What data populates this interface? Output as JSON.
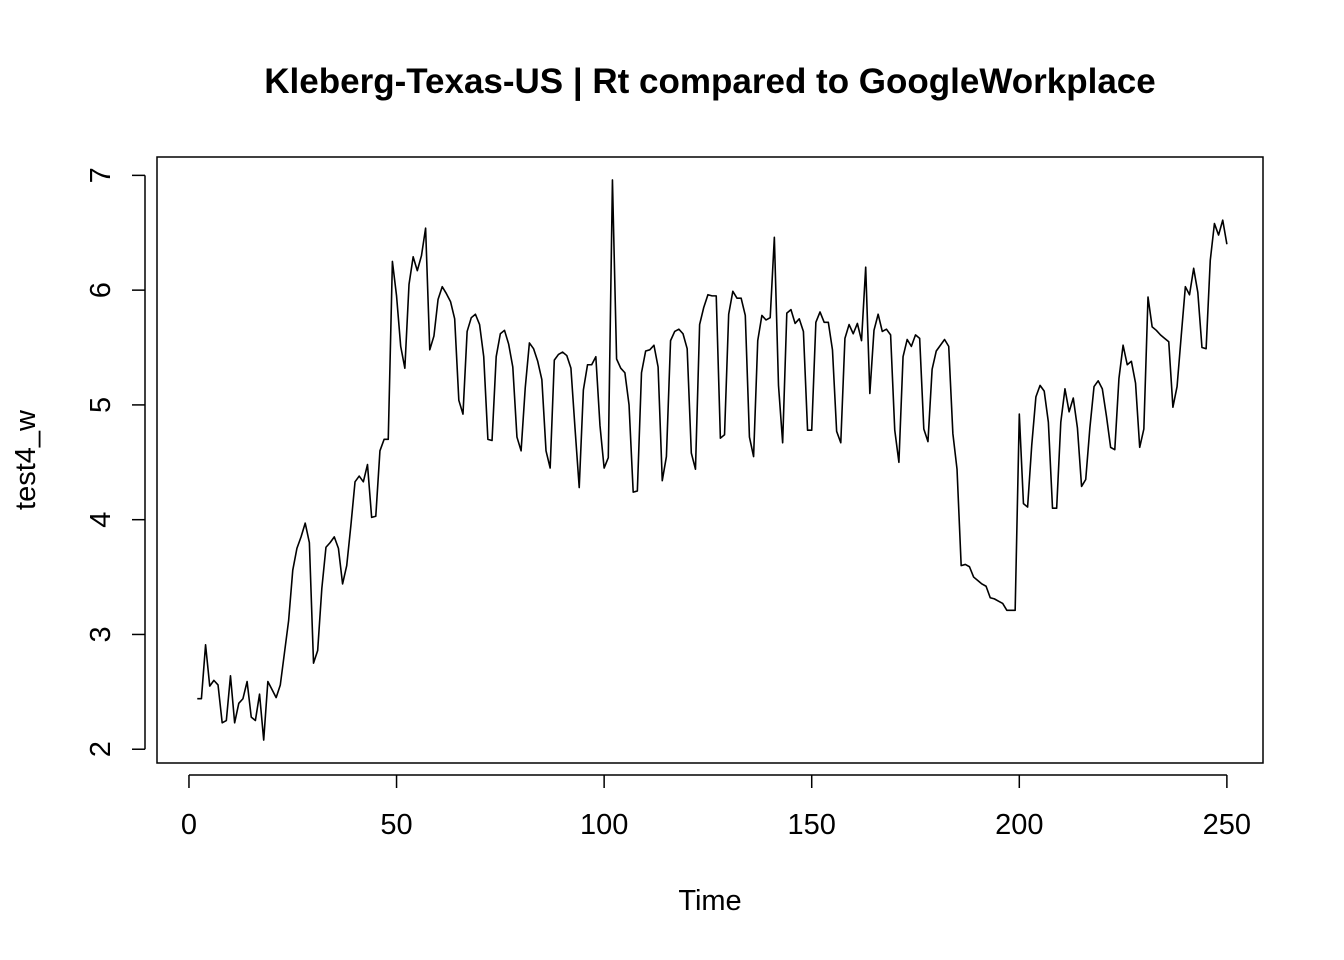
{
  "chart_data": {
    "type": "line",
    "title": "Kleberg-Texas-US | Rt compared to GoogleWorkplace",
    "xlabel": "Time",
    "ylabel": "test4_w",
    "xlim": [
      -7.7,
      258.7
    ],
    "ylim": [
      1.88,
      7.16
    ],
    "x_ticks": [
      0,
      50,
      100,
      150,
      200,
      250
    ],
    "y_ticks": [
      2,
      3,
      4,
      5,
      6,
      7
    ],
    "grid": false,
    "legend": "none",
    "series_color": "#000000",
    "x_start": 2,
    "series": [
      {
        "values": [
          2.44,
          2.44,
          2.91,
          2.55,
          2.6,
          2.56,
          2.23,
          2.25,
          2.64,
          2.23,
          2.4,
          2.44,
          2.59,
          2.28,
          2.25,
          2.48,
          2.08,
          2.59,
          2.52,
          2.45,
          2.56,
          2.84,
          3.12,
          3.56,
          3.75,
          3.85,
          3.97,
          3.8,
          2.75,
          2.86,
          3.4,
          3.76,
          3.8,
          3.85,
          3.75,
          3.44,
          3.6,
          3.95,
          4.33,
          4.38,
          4.33,
          4.48,
          4.02,
          4.03,
          4.6,
          4.7,
          4.7,
          6.25,
          5.95,
          5.51,
          5.32,
          6.05,
          6.29,
          6.17,
          6.3,
          6.54,
          5.48,
          5.6,
          5.92,
          6.03,
          5.97,
          5.9,
          5.75,
          5.04,
          4.92,
          5.64,
          5.76,
          5.79,
          5.7,
          5.42,
          4.7,
          4.69,
          5.42,
          5.62,
          5.65,
          5.53,
          5.33,
          4.72,
          4.6,
          5.15,
          5.54,
          5.49,
          5.38,
          5.22,
          4.6,
          4.45,
          5.39,
          5.44,
          5.46,
          5.43,
          5.32,
          4.79,
          4.28,
          5.13,
          5.35,
          5.35,
          5.42,
          4.82,
          4.45,
          4.54,
          6.96,
          5.4,
          5.32,
          5.28,
          5.0,
          4.24,
          4.25,
          5.28,
          5.47,
          5.48,
          5.52,
          5.33,
          4.34,
          4.55,
          5.56,
          5.64,
          5.66,
          5.62,
          5.49,
          4.58,
          4.44,
          5.7,
          5.85,
          5.96,
          5.95,
          5.95,
          4.71,
          4.74,
          5.79,
          5.99,
          5.93,
          5.93,
          5.78,
          4.72,
          4.55,
          5.56,
          5.78,
          5.74,
          5.76,
          6.46,
          5.17,
          4.67,
          5.8,
          5.83,
          5.71,
          5.75,
          5.64,
          4.78,
          4.78,
          5.72,
          5.81,
          5.72,
          5.72,
          5.48,
          4.77,
          4.67,
          5.58,
          5.7,
          5.62,
          5.71,
          5.56,
          6.2,
          5.1,
          5.65,
          5.79,
          5.64,
          5.66,
          5.61,
          4.78,
          4.5,
          5.42,
          5.57,
          5.51,
          5.61,
          5.58,
          4.79,
          4.68,
          5.31,
          5.47,
          5.52,
          5.57,
          5.51,
          4.75,
          4.44,
          3.6,
          3.61,
          3.59,
          3.5,
          3.47,
          3.44,
          3.42,
          3.32,
          3.31,
          3.29,
          3.27,
          3.21,
          3.21,
          3.21,
          4.92,
          4.14,
          4.11,
          4.65,
          5.07,
          5.17,
          5.12,
          4.85,
          4.1,
          4.1,
          4.85,
          5.14,
          4.94,
          5.06,
          4.8,
          4.29,
          4.35,
          4.8,
          5.16,
          5.21,
          5.14,
          4.9,
          4.63,
          4.61,
          5.23,
          5.52,
          5.35,
          5.38,
          5.19,
          4.63,
          4.79,
          5.94,
          5.68,
          5.65,
          5.61,
          5.58,
          5.55,
          4.98,
          5.16,
          5.6,
          6.03,
          5.96,
          6.19,
          5.98,
          5.5,
          5.49,
          6.26,
          6.58,
          6.48,
          6.61,
          6.4
        ]
      }
    ]
  }
}
